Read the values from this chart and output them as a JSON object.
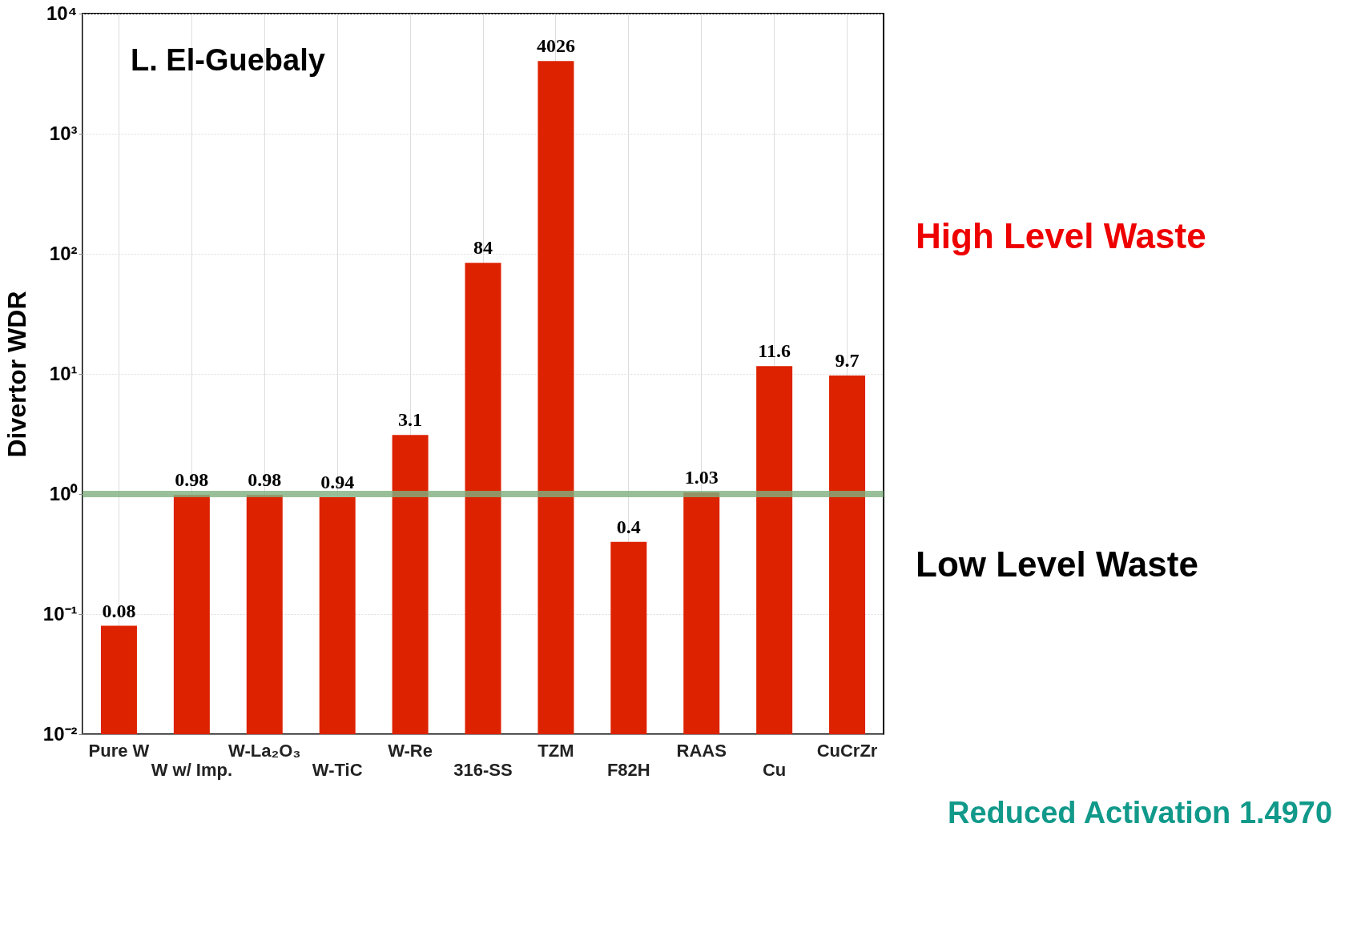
{
  "chart_data": {
    "type": "bar",
    "ylabel": "Divertor WDR",
    "categories": [
      "Pure W",
      "W w/ Imp.",
      "W-La₂O₃",
      "W-TiC",
      "W-Re",
      "316-SS",
      "TZM",
      "F82H",
      "RAAS",
      "Cu",
      "CuCrZr"
    ],
    "values": [
      0.08,
      0.98,
      0.98,
      0.94,
      3.1,
      84,
      4026,
      0.4,
      1.03,
      11.6,
      9.7
    ],
    "color": "#dd2200",
    "data_labels": true,
    "log": true,
    "grid": true,
    "ylim": [
      0.01,
      10000
    ],
    "yticks": [
      {
        "value": 0.01,
        "label": "10⁻²"
      },
      {
        "value": 0.1,
        "label": "10⁻¹"
      },
      {
        "value": 1,
        "label": "10⁰"
      },
      {
        "value": 10,
        "label": "10¹"
      },
      {
        "value": 100,
        "label": "10²"
      },
      {
        "value": 1000,
        "label": "10³"
      },
      {
        "value": 10000,
        "label": "10⁴"
      }
    ],
    "ref_lines": [
      {
        "axis": "y",
        "value": 1,
        "color": "#7fb07f"
      }
    ],
    "annotations": [
      "L. El-Guebaly",
      "High Level Waste",
      "Low Level Waste",
      "Reduced Activation 1.4970"
    ]
  }
}
